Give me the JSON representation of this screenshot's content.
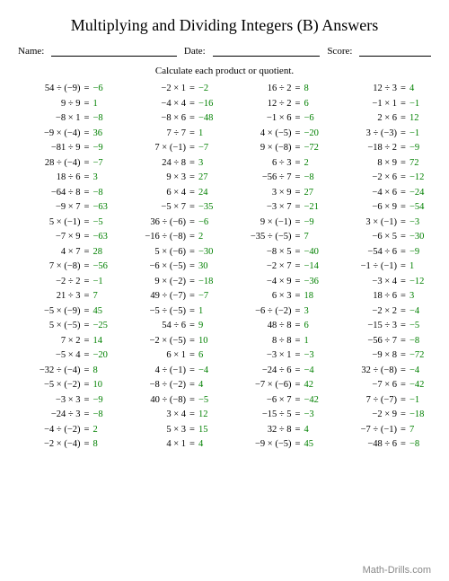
{
  "title": "Multiplying and Dividing Integers (B) Answers",
  "labels": {
    "name": "Name:",
    "date": "Date:",
    "score": "Score:"
  },
  "instruction": "Calculate each product or quotient.",
  "footer": "Math-Drills.com",
  "colors": {
    "answer": "#008000",
    "footer": "#888888"
  },
  "problems": [
    [
      {
        "e": "54 ÷ (−9)",
        "a": "−6"
      },
      {
        "e": "−2 × 1",
        "a": "−2"
      },
      {
        "e": "16 ÷ 2",
        "a": "8"
      },
      {
        "e": "12 ÷ 3",
        "a": "4"
      }
    ],
    [
      {
        "e": "9 ÷ 9",
        "a": "1"
      },
      {
        "e": "−4 × 4",
        "a": "−16"
      },
      {
        "e": "12 ÷ 2",
        "a": "6"
      },
      {
        "e": "−1 × 1",
        "a": "−1"
      }
    ],
    [
      {
        "e": "−8 × 1",
        "a": "−8"
      },
      {
        "e": "−8 × 6",
        "a": "−48"
      },
      {
        "e": "−1 × 6",
        "a": "−6"
      },
      {
        "e": "2 × 6",
        "a": "12"
      }
    ],
    [
      {
        "e": "−9 × (−4)",
        "a": "36"
      },
      {
        "e": "7 ÷ 7",
        "a": "1"
      },
      {
        "e": "4 × (−5)",
        "a": "−20"
      },
      {
        "e": "3 ÷ (−3)",
        "a": "−1"
      }
    ],
    [
      {
        "e": "−81 ÷ 9",
        "a": "−9"
      },
      {
        "e": "7 × (−1)",
        "a": "−7"
      },
      {
        "e": "9 × (−8)",
        "a": "−72"
      },
      {
        "e": "−18 ÷ 2",
        "a": "−9"
      }
    ],
    [
      {
        "e": "28 ÷ (−4)",
        "a": "−7"
      },
      {
        "e": "24 ÷ 8",
        "a": "3"
      },
      {
        "e": "6 ÷ 3",
        "a": "2"
      },
      {
        "e": "8 × 9",
        "a": "72"
      }
    ],
    [
      {
        "e": "18 ÷ 6",
        "a": "3"
      },
      {
        "e": "9 × 3",
        "a": "27"
      },
      {
        "e": "−56 ÷ 7",
        "a": "−8"
      },
      {
        "e": "−2 × 6",
        "a": "−12"
      }
    ],
    [
      {
        "e": "−64 ÷ 8",
        "a": "−8"
      },
      {
        "e": "6 × 4",
        "a": "24"
      },
      {
        "e": "3 × 9",
        "a": "27"
      },
      {
        "e": "−4 × 6",
        "a": "−24"
      }
    ],
    [
      {
        "e": "−9 × 7",
        "a": "−63"
      },
      {
        "e": "−5 × 7",
        "a": "−35"
      },
      {
        "e": "−3 × 7",
        "a": "−21"
      },
      {
        "e": "−6 × 9",
        "a": "−54"
      }
    ],
    [
      {
        "e": "5 × (−1)",
        "a": "−5"
      },
      {
        "e": "36 ÷ (−6)",
        "a": "−6"
      },
      {
        "e": "9 × (−1)",
        "a": "−9"
      },
      {
        "e": "3 × (−1)",
        "a": "−3"
      }
    ],
    [
      {
        "e": "−7 × 9",
        "a": "−63"
      },
      {
        "e": "−16 ÷ (−8)",
        "a": "2"
      },
      {
        "e": "−35 ÷ (−5)",
        "a": "7"
      },
      {
        "e": "−6 × 5",
        "a": "−30"
      }
    ],
    [
      {
        "e": "4 × 7",
        "a": "28"
      },
      {
        "e": "5 × (−6)",
        "a": "−30"
      },
      {
        "e": "−8 × 5",
        "a": "−40"
      },
      {
        "e": "−54 ÷ 6",
        "a": "−9"
      }
    ],
    [
      {
        "e": "7 × (−8)",
        "a": "−56"
      },
      {
        "e": "−6 × (−5)",
        "a": "30"
      },
      {
        "e": "−2 × 7",
        "a": "−14"
      },
      {
        "e": "−1 ÷ (−1)",
        "a": "1"
      }
    ],
    [
      {
        "e": "−2 ÷ 2",
        "a": "−1"
      },
      {
        "e": "9 × (−2)",
        "a": "−18"
      },
      {
        "e": "−4 × 9",
        "a": "−36"
      },
      {
        "e": "−3 × 4",
        "a": "−12"
      }
    ],
    [
      {
        "e": "21 ÷ 3",
        "a": "7"
      },
      {
        "e": "49 ÷ (−7)",
        "a": "−7"
      },
      {
        "e": "6 × 3",
        "a": "18"
      },
      {
        "e": "18 ÷ 6",
        "a": "3"
      }
    ],
    [
      {
        "e": "−5 × (−9)",
        "a": "45"
      },
      {
        "e": "−5 ÷ (−5)",
        "a": "1"
      },
      {
        "e": "−6 ÷ (−2)",
        "a": "3"
      },
      {
        "e": "−2 × 2",
        "a": "−4"
      }
    ],
    [
      {
        "e": "5 × (−5)",
        "a": "−25"
      },
      {
        "e": "54 ÷ 6",
        "a": "9"
      },
      {
        "e": "48 ÷ 8",
        "a": "6"
      },
      {
        "e": "−15 ÷ 3",
        "a": "−5"
      }
    ],
    [
      {
        "e": "7 × 2",
        "a": "14"
      },
      {
        "e": "−2 × (−5)",
        "a": "10"
      },
      {
        "e": "8 ÷ 8",
        "a": "1"
      },
      {
        "e": "−56 ÷ 7",
        "a": "−8"
      }
    ],
    [
      {
        "e": "−5 × 4",
        "a": "−20"
      },
      {
        "e": "6 × 1",
        "a": "6"
      },
      {
        "e": "−3 × 1",
        "a": "−3"
      },
      {
        "e": "−9 × 8",
        "a": "−72"
      }
    ],
    [
      {
        "e": "−32 ÷ (−4)",
        "a": "8"
      },
      {
        "e": "4 ÷ (−1)",
        "a": "−4"
      },
      {
        "e": "−24 ÷ 6",
        "a": "−4"
      },
      {
        "e": "32 ÷ (−8)",
        "a": "−4"
      }
    ],
    [
      {
        "e": "−5 × (−2)",
        "a": "10"
      },
      {
        "e": "−8 ÷ (−2)",
        "a": "4"
      },
      {
        "e": "−7 × (−6)",
        "a": "42"
      },
      {
        "e": "−7 × 6",
        "a": "−42"
      }
    ],
    [
      {
        "e": "−3 × 3",
        "a": "−9"
      },
      {
        "e": "40 ÷ (−8)",
        "a": "−5"
      },
      {
        "e": "−6 × 7",
        "a": "−42"
      },
      {
        "e": "7 ÷ (−7)",
        "a": "−1"
      }
    ],
    [
      {
        "e": "−24 ÷ 3",
        "a": "−8"
      },
      {
        "e": "3 × 4",
        "a": "12"
      },
      {
        "e": "−15 ÷ 5",
        "a": "−3"
      },
      {
        "e": "−2 × 9",
        "a": "−18"
      }
    ],
    [
      {
        "e": "−4 ÷ (−2)",
        "a": "2"
      },
      {
        "e": "5 × 3",
        "a": "15"
      },
      {
        "e": "32 ÷ 8",
        "a": "4"
      },
      {
        "e": "−7 ÷ (−1)",
        "a": "7"
      }
    ],
    [
      {
        "e": "−2 × (−4)",
        "a": "8"
      },
      {
        "e": "4 × 1",
        "a": "4"
      },
      {
        "e": "−9 × (−5)",
        "a": "45"
      },
      {
        "e": "−48 ÷ 6",
        "a": "−8"
      }
    ]
  ]
}
